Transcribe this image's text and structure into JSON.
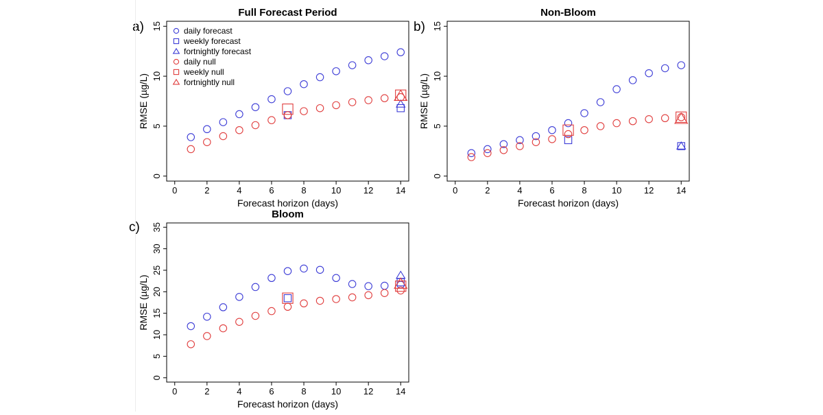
{
  "colors": {
    "forecast": "#3b3bd6",
    "null": "#e03c3c",
    "axis": "#000000"
  },
  "legend": [
    {
      "label": "daily forecast",
      "marker": "circle",
      "color_key": "forecast",
      "size": "small"
    },
    {
      "label": "weekly forecast",
      "marker": "square",
      "color_key": "forecast",
      "size": "small"
    },
    {
      "label": "fortnightly forecast",
      "marker": "triangle",
      "color_key": "forecast",
      "size": "small"
    },
    {
      "label": "daily null",
      "marker": "circle",
      "color_key": "null",
      "size": "small"
    },
    {
      "label": "weekly null",
      "marker": "square",
      "color_key": "null",
      "size": "small"
    },
    {
      "label": "fortnightly null",
      "marker": "triangle",
      "color_key": "null",
      "size": "small"
    }
  ],
  "chart_data": [
    {
      "panel": "a)",
      "type": "scatter",
      "title": "Full Forecast Period",
      "xlabel": "Forecast horizon (days)",
      "ylabel": "RMSE (µg/L)",
      "xlim": [
        -0.5,
        14.5
      ],
      "ylim": [
        -0.5,
        15.5
      ],
      "xticks": [
        0,
        2,
        4,
        6,
        8,
        10,
        12,
        14
      ],
      "yticks": [
        0,
        5,
        10,
        15
      ],
      "grid": false,
      "legend_position": "top-left",
      "series": [
        {
          "name": "daily forecast",
          "marker": "circle",
          "color_key": "forecast",
          "size": "medium",
          "x": [
            1,
            2,
            3,
            4,
            5,
            6,
            7,
            8,
            9,
            10,
            11,
            12,
            13,
            14
          ],
          "y": [
            3.9,
            4.7,
            5.4,
            6.2,
            6.9,
            7.7,
            8.5,
            9.2,
            9.9,
            10.5,
            11.1,
            11.6,
            12.0,
            12.4
          ]
        },
        {
          "name": "weekly forecast",
          "marker": "square",
          "color_key": "forecast",
          "size": "medium",
          "x": [
            7,
            14
          ],
          "y": [
            6.1,
            6.8
          ]
        },
        {
          "name": "fortnightly forecast",
          "marker": "triangle",
          "color_key": "forecast",
          "size": "medium",
          "x": [
            14
          ],
          "y": [
            7.2
          ]
        },
        {
          "name": "daily null",
          "marker": "circle",
          "color_key": "null",
          "size": "medium",
          "x": [
            1,
            2,
            3,
            4,
            5,
            6,
            7,
            8,
            9,
            10,
            11,
            12,
            13,
            14
          ],
          "y": [
            2.7,
            3.4,
            4.0,
            4.6,
            5.1,
            5.6,
            6.1,
            6.5,
            6.8,
            7.1,
            7.4,
            7.6,
            7.8,
            7.9
          ]
        },
        {
          "name": "weekly null",
          "marker": "square",
          "color_key": "null",
          "size": "large",
          "x": [
            7,
            14
          ],
          "y": [
            6.7,
            8.1
          ]
        },
        {
          "name": "fortnightly null",
          "marker": "triangle",
          "color_key": "null",
          "size": "large",
          "x": [
            14
          ],
          "y": [
            8.0
          ]
        }
      ]
    },
    {
      "panel": "b)",
      "type": "scatter",
      "title": "Non-Bloom",
      "xlabel": "Forecast horizon (days)",
      "ylabel": "RMSE (µg/L)",
      "xlim": [
        -0.5,
        14.5
      ],
      "ylim": [
        -0.5,
        15.5
      ],
      "xticks": [
        0,
        2,
        4,
        6,
        8,
        10,
        12,
        14
      ],
      "yticks": [
        0,
        5,
        10,
        15
      ],
      "grid": false,
      "series": [
        {
          "name": "daily forecast",
          "marker": "circle",
          "color_key": "forecast",
          "size": "medium",
          "x": [
            1,
            2,
            3,
            4,
            5,
            6,
            7,
            8,
            9,
            10,
            11,
            12,
            13,
            14
          ],
          "y": [
            2.3,
            2.7,
            3.2,
            3.6,
            4.0,
            4.6,
            5.3,
            6.3,
            7.4,
            8.7,
            9.6,
            10.3,
            10.8,
            11.1
          ]
        },
        {
          "name": "weekly forecast",
          "marker": "square",
          "color_key": "forecast",
          "size": "medium",
          "x": [
            7,
            14
          ],
          "y": [
            3.6,
            3.0
          ]
        },
        {
          "name": "fortnightly forecast",
          "marker": "triangle",
          "color_key": "forecast",
          "size": "medium",
          "x": [
            14
          ],
          "y": [
            3.0
          ]
        },
        {
          "name": "daily null",
          "marker": "circle",
          "color_key": "null",
          "size": "medium",
          "x": [
            1,
            2,
            3,
            4,
            5,
            6,
            7,
            8,
            9,
            10,
            11,
            12,
            13,
            14
          ],
          "y": [
            1.9,
            2.3,
            2.6,
            3.0,
            3.4,
            3.7,
            4.2,
            4.6,
            5.0,
            5.3,
            5.5,
            5.7,
            5.8,
            5.9
          ]
        },
        {
          "name": "weekly null",
          "marker": "square",
          "color_key": "null",
          "size": "large",
          "x": [
            7,
            14
          ],
          "y": [
            4.6,
            5.9
          ]
        },
        {
          "name": "fortnightly null",
          "marker": "triangle",
          "color_key": "null",
          "size": "large",
          "x": [
            14
          ],
          "y": [
            5.7
          ]
        }
      ]
    },
    {
      "panel": "c)",
      "type": "scatter",
      "title": "Bloom",
      "xlabel": "Forecast horizon (days)",
      "ylabel": "RMSE (µg/L)",
      "xlim": [
        -0.5,
        14.5
      ],
      "ylim": [
        -1.0,
        36.0
      ],
      "xticks": [
        0,
        2,
        4,
        6,
        8,
        10,
        12,
        14
      ],
      "yticks": [
        0,
        5,
        10,
        15,
        20,
        25,
        30,
        35
      ],
      "grid": false,
      "series": [
        {
          "name": "daily forecast",
          "marker": "circle",
          "color_key": "forecast",
          "size": "medium",
          "x": [
            1,
            2,
            3,
            4,
            5,
            6,
            7,
            8,
            9,
            10,
            11,
            12,
            13,
            14
          ],
          "y": [
            12.0,
            14.2,
            16.4,
            18.8,
            21.1,
            23.2,
            24.8,
            25.4,
            25.1,
            23.2,
            21.8,
            21.3,
            21.4,
            21.6
          ]
        },
        {
          "name": "weekly forecast",
          "marker": "square",
          "color_key": "forecast",
          "size": "medium",
          "x": [
            7,
            14
          ],
          "y": [
            18.5,
            22.2
          ]
        },
        {
          "name": "fortnightly forecast",
          "marker": "triangle",
          "color_key": "forecast",
          "size": "medium",
          "x": [
            14
          ],
          "y": [
            23.8
          ]
        },
        {
          "name": "daily null",
          "marker": "circle",
          "color_key": "null",
          "size": "medium",
          "x": [
            1,
            2,
            3,
            4,
            5,
            6,
            7,
            8,
            9,
            10,
            11,
            12,
            13,
            14
          ],
          "y": [
            7.8,
            9.7,
            11.5,
            13.0,
            14.4,
            15.5,
            16.5,
            17.3,
            17.9,
            18.3,
            18.7,
            19.2,
            19.7,
            20.3
          ]
        },
        {
          "name": "weekly null",
          "marker": "square",
          "color_key": "null",
          "size": "large",
          "x": [
            7,
            14
          ],
          "y": [
            18.5,
            21.3
          ]
        },
        {
          "name": "fortnightly null",
          "marker": "triangle",
          "color_key": "null",
          "size": "large",
          "x": [
            14
          ],
          "y": [
            21.8
          ]
        }
      ]
    }
  ]
}
